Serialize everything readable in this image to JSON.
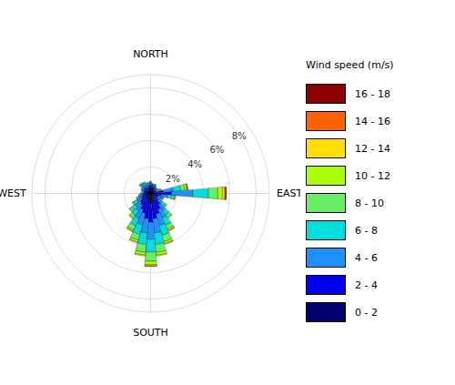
{
  "chart_data": {
    "type": "polar_bar",
    "stacked": true,
    "grid": true,
    "legend": "right",
    "tick_labels": "y",
    "legend_title": "Wind speed (m/s)",
    "x": [
      0,
      10,
      20,
      30,
      40,
      50,
      60,
      70,
      80,
      90,
      100,
      110,
      120,
      130,
      140,
      150,
      160,
      170,
      180,
      190,
      200,
      210,
      220,
      230,
      240,
      250,
      260,
      270,
      280,
      290,
      300,
      310,
      320,
      330,
      340,
      350
    ],
    "xlim": [
      0,
      360
    ],
    "ylim": [
      0,
      9.0
    ],
    "yticks": [
      {
        "value": 2,
        "label": "2%"
      },
      {
        "value": 4,
        "label": "4%"
      },
      {
        "value": 6,
        "label": "6%"
      },
      {
        "value": 8,
        "label": "8%"
      }
    ],
    "annotations": [
      {
        "text": "NORTH",
        "x": 0
      },
      {
        "text": "EAST",
        "x": 90
      },
      {
        "text": "SOUTH",
        "x": 180
      },
      {
        "text": "WEST",
        "x": 270
      }
    ],
    "series": [
      {
        "name": "0 - 2",
        "color": "#00006F",
        "values": [
          0.4,
          0.35,
          0.3,
          0.3,
          0.28,
          0.25,
          0.22,
          0.2,
          0.3,
          0.4,
          0.3,
          0.28,
          0.28,
          0.32,
          0.45,
          0.55,
          0.65,
          0.75,
          0.8,
          0.75,
          0.6,
          0.5,
          0.42,
          0.42,
          0.36,
          0.32,
          0.28,
          0.28,
          0.23,
          0.26,
          0.26,
          0.3,
          0.26,
          0.22,
          0.26,
          0.35
        ]
      },
      {
        "name": "2 - 4",
        "color": "#0000EE",
        "values": [
          0.3,
          0.25,
          0.22,
          0.22,
          0.2,
          0.18,
          0.18,
          0.22,
          0.65,
          1.2,
          0.5,
          0.32,
          0.3,
          0.42,
          0.6,
          0.8,
          0.98,
          1.18,
          1.38,
          1.18,
          0.98,
          0.85,
          0.65,
          0.56,
          0.44,
          0.35,
          0.3,
          0.26,
          0.21,
          0.26,
          0.3,
          0.35,
          0.3,
          0.26,
          0.26,
          0.26
        ]
      },
      {
        "name": "4 - 6",
        "color": "#1E90FF",
        "values": [
          0.15,
          0.12,
          0.12,
          0.15,
          0.12,
          0.1,
          0.12,
          0.18,
          0.75,
          1.6,
          0.5,
          0.25,
          0.25,
          0.35,
          0.52,
          0.72,
          0.88,
          1.08,
          1.28,
          1.08,
          0.88,
          0.75,
          0.55,
          0.46,
          0.35,
          0.25,
          0.2,
          0.16,
          0.12,
          0.16,
          0.16,
          0.25,
          0.22,
          0.22,
          0.16,
          0.16
        ]
      },
      {
        "name": "6 - 8",
        "color": "#00DDDD",
        "values": [
          0.08,
          0.05,
          0.06,
          0.08,
          0.06,
          0.05,
          0.08,
          0.12,
          0.6,
          1.2,
          0.35,
          0.15,
          0.12,
          0.25,
          0.42,
          0.6,
          0.78,
          0.88,
          0.98,
          0.88,
          0.75,
          0.6,
          0.42,
          0.34,
          0.24,
          0.16,
          0.11,
          0.08,
          0.04,
          0.08,
          0.08,
          0.12,
          0.12,
          0.16,
          0.12,
          0.08
        ]
      },
      {
        "name": "8 - 10",
        "color": "#66EE66",
        "values": [
          0,
          0,
          0.03,
          0.03,
          0,
          0,
          0.04,
          0.08,
          0.3,
          0.7,
          0.15,
          0.06,
          0.04,
          0.12,
          0.25,
          0.35,
          0.5,
          0.6,
          0.7,
          0.6,
          0.45,
          0.35,
          0.24,
          0.16,
          0.12,
          0.07,
          0.04,
          0,
          0,
          0,
          0,
          0.04,
          0.08,
          0.08,
          0.04,
          0
        ]
      },
      {
        "name": "10 - 12",
        "color": "#AAFF00",
        "values": [
          0,
          0,
          0,
          0,
          0,
          0,
          0,
          0.04,
          0.15,
          0.35,
          0.07,
          0,
          0,
          0.04,
          0.08,
          0.12,
          0.16,
          0.2,
          0.26,
          0.2,
          0.16,
          0.12,
          0.08,
          0.06,
          0.04,
          0,
          0,
          0,
          0,
          0,
          0,
          0,
          0.04,
          0.04,
          0,
          0
        ]
      },
      {
        "name": "12 - 14",
        "color": "#FFE000",
        "values": [
          0,
          0,
          0,
          0,
          0,
          0,
          0,
          0,
          0.07,
          0.18,
          0.03,
          0,
          0,
          0,
          0,
          0.04,
          0.06,
          0.08,
          0.1,
          0.08,
          0.06,
          0.04,
          0,
          0,
          0,
          0,
          0,
          0,
          0,
          0,
          0,
          0,
          0,
          0,
          0,
          0
        ]
      },
      {
        "name": "14 - 16",
        "color": "#FF6000",
        "values": [
          0,
          0,
          0,
          0,
          0,
          0,
          0,
          0,
          0.03,
          0.08,
          0,
          0,
          0,
          0,
          0,
          0,
          0,
          0,
          0.04,
          0,
          0,
          0,
          0,
          0,
          0,
          0,
          0,
          0,
          0,
          0,
          0,
          0,
          0,
          0,
          0,
          0
        ]
      },
      {
        "name": "16 - 18",
        "color": "#8B0000",
        "values": [
          0,
          0,
          0,
          0,
          0,
          0,
          0,
          0,
          0,
          0.03,
          0,
          0,
          0,
          0,
          0,
          0,
          0,
          0,
          0,
          0,
          0,
          0,
          0,
          0,
          0,
          0,
          0,
          0,
          0,
          0,
          0,
          0,
          0,
          0,
          0,
          0
        ]
      }
    ]
  }
}
